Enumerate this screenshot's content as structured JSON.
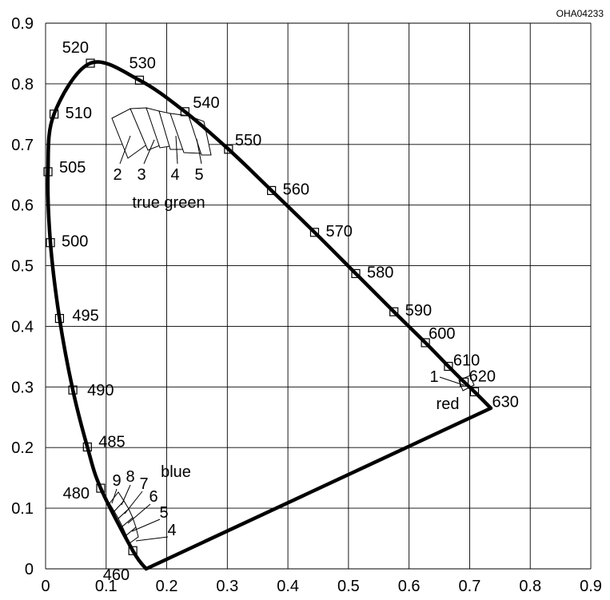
{
  "chart_data": {
    "type": "scatter",
    "code": "OHA04233",
    "title": "",
    "xlabel": "",
    "ylabel": "",
    "xlim": [
      0,
      0.9
    ],
    "ylim": [
      0,
      0.9
    ],
    "grid": true,
    "x_ticks": [
      "0",
      "0.1",
      "0.2",
      "0.3",
      "0.4",
      "0.5",
      "0.6",
      "0.7",
      "0.8",
      "0.9"
    ],
    "y_ticks": [
      "0",
      "0.1",
      "0.2",
      "0.3",
      "0.4",
      "0.5",
      "0.6",
      "0.7",
      "0.8",
      "0.9"
    ],
    "spectral_locus": [
      {
        "label": "460",
        "x": 0.144,
        "y": 0.03
      },
      {
        "label": "480",
        "x": 0.091,
        "y": 0.133
      },
      {
        "label": "485",
        "x": 0.069,
        "y": 0.201
      },
      {
        "label": "490",
        "x": 0.045,
        "y": 0.295
      },
      {
        "label": "495",
        "x": 0.023,
        "y": 0.413
      },
      {
        "label": "500",
        "x": 0.008,
        "y": 0.538
      },
      {
        "label": "505",
        "x": 0.004,
        "y": 0.655
      },
      {
        "label": "510",
        "x": 0.014,
        "y": 0.75
      },
      {
        "label": "520",
        "x": 0.074,
        "y": 0.834
      },
      {
        "label": "530",
        "x": 0.155,
        "y": 0.806
      },
      {
        "label": "540",
        "x": 0.23,
        "y": 0.754
      },
      {
        "label": "550",
        "x": 0.302,
        "y": 0.692
      },
      {
        "label": "560",
        "x": 0.373,
        "y": 0.624
      },
      {
        "label": "570",
        "x": 0.444,
        "y": 0.555
      },
      {
        "label": "580",
        "x": 0.512,
        "y": 0.487
      },
      {
        "label": "590",
        "x": 0.575,
        "y": 0.424
      },
      {
        "label": "600",
        "x": 0.627,
        "y": 0.373
      },
      {
        "label": "610",
        "x": 0.665,
        "y": 0.334
      },
      {
        "label": "620",
        "x": 0.691,
        "y": 0.308
      },
      {
        "label": "630",
        "x": 0.708,
        "y": 0.292
      }
    ],
    "locus_end": {
      "x": 0.735,
      "y": 0.265
    },
    "purple_line_end": {
      "x": 0.166,
      "y": 0.0
    },
    "regions": [
      {
        "group": "true green",
        "labels": [
          "2",
          "3",
          "4",
          "5"
        ]
      },
      {
        "group": "blue",
        "labels": [
          "9",
          "8",
          "7",
          "6",
          "5",
          "4"
        ]
      },
      {
        "group": "red",
        "labels": [
          "1"
        ]
      }
    ]
  }
}
